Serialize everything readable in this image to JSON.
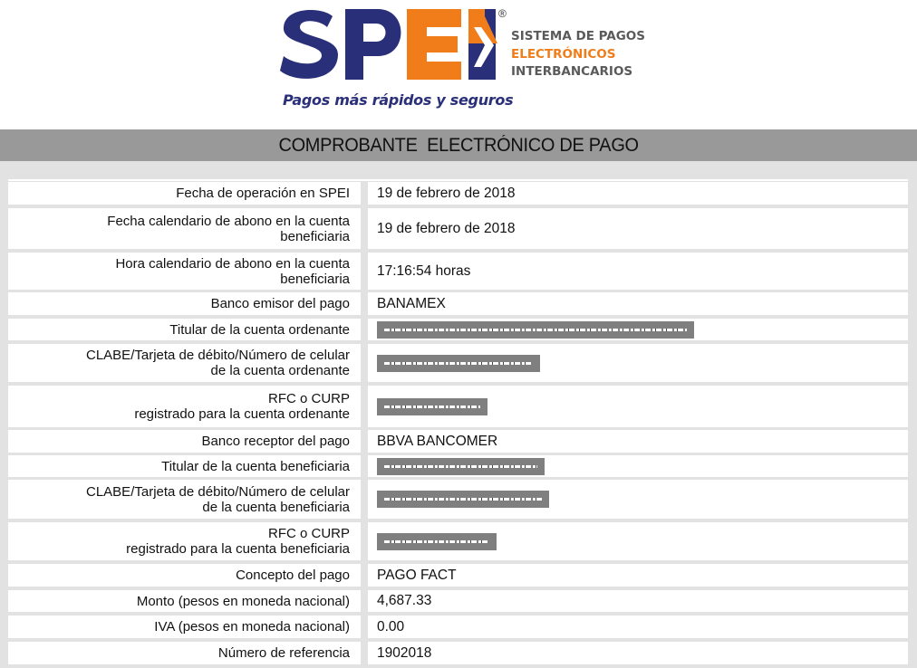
{
  "logo": {
    "brand": "SPEI",
    "registered_mark": "®",
    "subtitle_lines": [
      "SISTEMA DE PAGOS",
      "ELECTRÓNICOS",
      "INTERBANCARIOS"
    ],
    "tagline": "Pagos más rápidos y seguros",
    "colors": {
      "navy": "#2a2f7a",
      "orange": "#f07d1a",
      "gray": "#5a5a5a"
    }
  },
  "title": "COMPROBANTE  ELECTRÓNICO DE PAGO",
  "rows": [
    {
      "label_lines": [
        "Fecha de operación en SPEI"
      ],
      "value": "19 de febrero de 2018",
      "redacted": false
    },
    {
      "label_lines": [
        "Fecha calendario de abono en la cuenta",
        "beneficiaria"
      ],
      "value": "19 de febrero de 2018",
      "redacted": false
    },
    {
      "label_lines": [
        "Hora calendario de abono en la cuenta",
        "beneficiaria"
      ],
      "value": "17:16:54 horas",
      "redacted": false
    },
    {
      "label_lines": [
        "Banco emisor del pago"
      ],
      "value": "BANAMEX",
      "redacted": false
    },
    {
      "label_lines": [
        "Titular de la cuenta ordenante"
      ],
      "value": "",
      "redacted": true
    },
    {
      "label_lines": [
        "CLABE/Tarjeta de débito/Número de celular",
        "de la cuenta ordenante"
      ],
      "value": "",
      "redacted": true
    },
    {
      "label_lines": [
        "RFC o CURP",
        "registrado para la cuenta ordenante"
      ],
      "value": "",
      "redacted": true
    },
    {
      "label_lines": [
        "Banco receptor del pago"
      ],
      "value": "BBVA BANCOMER",
      "redacted": false
    },
    {
      "label_lines": [
        "Titular de la cuenta beneficiaria"
      ],
      "value": "",
      "redacted": true
    },
    {
      "label_lines": [
        "CLABE/Tarjeta de débito/Número de celular",
        "de la cuenta beneficiaria"
      ],
      "value": "",
      "redacted": true
    },
    {
      "label_lines": [
        "RFC o CURP",
        "registrado para la cuenta beneficiaria"
      ],
      "value": "",
      "redacted": true
    },
    {
      "label_lines": [
        "Concepto del pago"
      ],
      "value": "PAGO FACT",
      "redacted": false
    },
    {
      "label_lines": [
        "Monto (pesos en moneda nacional)"
      ],
      "value": "4,687.33",
      "redacted": false
    },
    {
      "label_lines": [
        "IVA (pesos en moneda nacional)"
      ],
      "value": "0.00",
      "redacted": false
    },
    {
      "label_lines": [
        "Número de referencia"
      ],
      "value": "1902018",
      "redacted": false
    }
  ]
}
